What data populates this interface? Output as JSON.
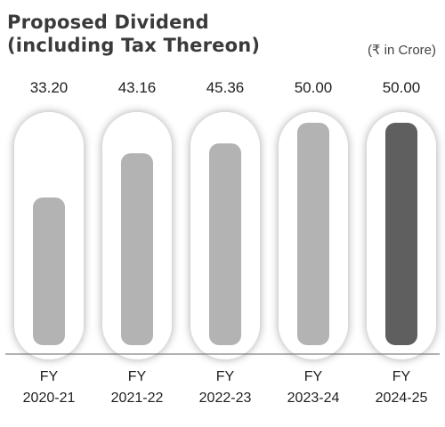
{
  "header": {
    "title_line1": "Proposed Dividend",
    "title_line2": "(including Tax Thereon)",
    "unit": "(₹ in Crore)"
  },
  "chart_data": {
    "type": "bar",
    "title": "Proposed Dividend (including Tax Thereon)",
    "unit": "(₹ in Crore)",
    "categories": [
      [
        "FY",
        "2020-21"
      ],
      [
        "FY",
        "2021-22"
      ],
      [
        "FY",
        "2022-23"
      ],
      [
        "FY",
        "2023-24"
      ],
      [
        "FY",
        "2024-25"
      ]
    ],
    "values": [
      33.2,
      43.16,
      45.36,
      50.0,
      50.0
    ],
    "value_labels": [
      "33.20",
      "43.16",
      "45.36",
      "50.00",
      "50.00"
    ],
    "ylim": [
      0,
      50
    ],
    "grid": false,
    "colors": {
      "bar": "#b3b3b3",
      "highlight_bar": "#5f5f5f",
      "track": "#ffffff",
      "track_shadow": "#d9d9d9",
      "baseline": "#666666"
    },
    "highlight_index": 4
  }
}
